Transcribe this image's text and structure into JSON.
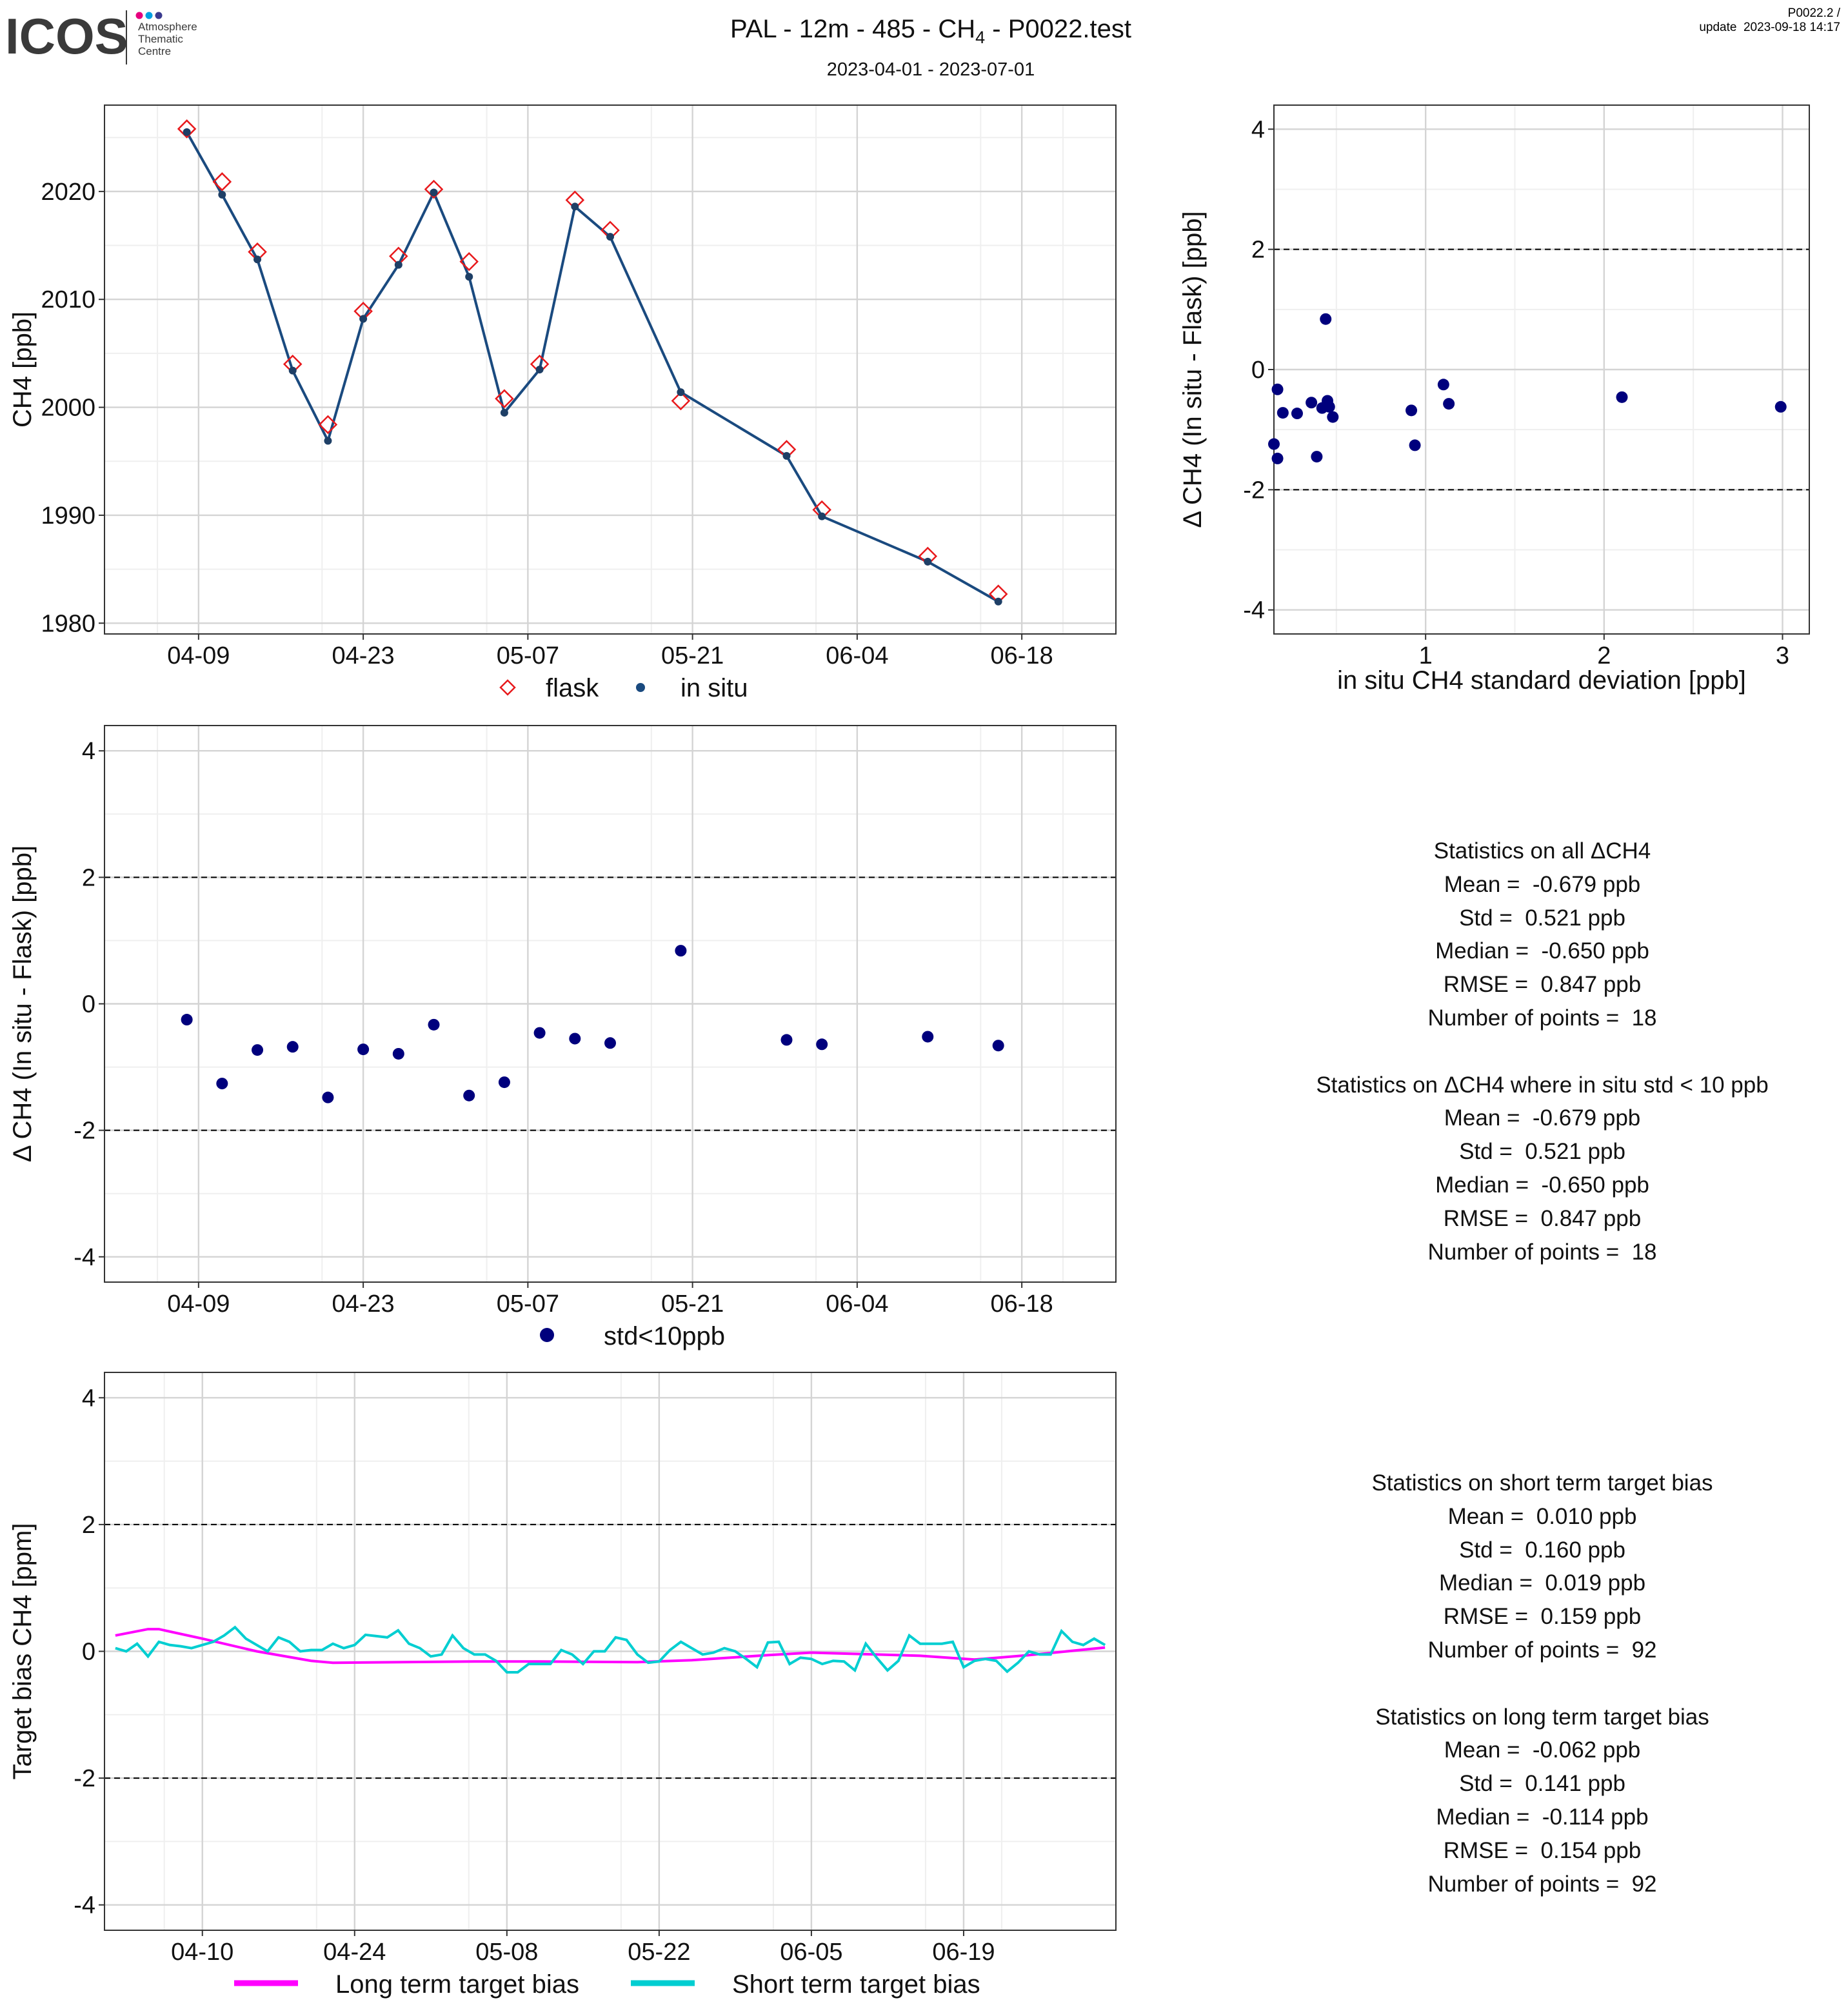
{
  "header": {
    "logo_text": "ICOS",
    "logo_sub": [
      "Atmosphere",
      "Thematic",
      "Centre"
    ],
    "title_main": "PAL - 12m - 485 - CH",
    "title_sub": "4",
    "title_end": " - P0022.test",
    "date_range": "2023-04-01 - 2023-07-01",
    "version": "P0022.2 /",
    "update": "update  2023-09-18 14:17"
  },
  "colors": {
    "series_line": "#1a4a7f",
    "in_situ_dot": "#1e3f66",
    "flask_marker": "#e8191c",
    "delta_dot": "#00007d",
    "long_term": "#ff00ff",
    "short_term": "#00ced1",
    "grid_major": "#d4d4d4",
    "grid_minor": "#efefef"
  },
  "stats_delta": [
    "Statistics on all ΔCH4",
    "Mean =  -0.679 ppb",
    "Std =  0.521 ppb",
    "Median =  -0.650 ppb",
    "RMSE =  0.847 ppb",
    "Number of points =  18",
    "",
    "Statistics on ΔCH4 where in situ std < 10 ppb",
    "Mean =  -0.679 ppb",
    "Std =  0.521 ppb",
    "Median =  -0.650 ppb",
    "RMSE =  0.847 ppb",
    "Number of points =  18"
  ],
  "stats_target": [
    "Statistics on short term target bias",
    "Mean =  0.010 ppb",
    "Std =  0.160 ppb",
    "Median =  0.019 ppb",
    "RMSE =  0.159 ppb",
    "Number of points =  92",
    "",
    "Statistics on long term target bias",
    "Mean =  -0.062 ppb",
    "Std =  0.141 ppb",
    "Median =  -0.114 ppb",
    "RMSE =  0.154 ppb",
    "Number of points =  92"
  ],
  "chart_data": [
    {
      "type": "line",
      "ylabel": "CH4 [ppb]",
      "xticks": [
        "04-09",
        "04-23",
        "05-07",
        "05-21",
        "06-04",
        "06-18"
      ],
      "xtick_values": [
        "2023-04-09",
        "2023-04-23",
        "2023-05-07",
        "2023-05-21",
        "2023-06-04",
        "2023-06-18"
      ],
      "xlim": [
        "2023-04-01",
        "2023-06-26"
      ],
      "yticks": [
        1980,
        1990,
        2000,
        2010,
        2020
      ],
      "ylim": [
        1979,
        2028
      ],
      "grid": true,
      "legend": "bottom",
      "legend_labels": [
        "flask",
        "in situ"
      ],
      "series": [
        {
          "name": "flask",
          "marker": "diamond",
          "x": [
            "2023-04-08",
            "2023-04-11",
            "2023-04-14",
            "2023-04-17",
            "2023-04-20",
            "2023-04-23",
            "2023-04-26",
            "2023-04-29",
            "2023-05-02",
            "2023-05-05",
            "2023-05-08",
            "2023-05-11",
            "2023-05-14",
            "2023-05-20",
            "2023-05-29",
            "2023-06-01",
            "2023-06-10",
            "2023-06-16"
          ],
          "y": [
            2025.8,
            2020.9,
            2014.4,
            2004.0,
            1998.4,
            2008.9,
            2014.0,
            2020.2,
            2013.5,
            2000.8,
            2004.0,
            2019.2,
            2016.4,
            2000.6,
            1996.1,
            1990.5,
            1986.2,
            1982.7
          ]
        },
        {
          "name": "in situ",
          "marker": "dot",
          "x": [
            "2023-04-08",
            "2023-04-11",
            "2023-04-14",
            "2023-04-17",
            "2023-04-20",
            "2023-04-23",
            "2023-04-26",
            "2023-04-29",
            "2023-05-02",
            "2023-05-05",
            "2023-05-08",
            "2023-05-11",
            "2023-05-14",
            "2023-05-20",
            "2023-05-29",
            "2023-06-01",
            "2023-06-10",
            "2023-06-16"
          ],
          "y": [
            2025.5,
            2019.7,
            2013.7,
            2003.4,
            1996.9,
            2008.2,
            2013.2,
            2019.9,
            2012.1,
            1999.5,
            2003.5,
            2018.6,
            2015.8,
            2001.4,
            1995.5,
            1989.9,
            1985.7,
            1982.0
          ]
        }
      ]
    },
    {
      "type": "scatter",
      "xlabel": "in situ CH4 standard deviation [ppb]",
      "ylabel": "Δ CH4 (In situ - Flask) [ppb]",
      "xticks": [
        1,
        2,
        3
      ],
      "xlim": [
        0.15,
        3.15
      ],
      "yticks": [
        -4,
        -2,
        0,
        2,
        4
      ],
      "ylim": [
        -4.4,
        4.4
      ],
      "hlines": [
        -2,
        2
      ],
      "grid": true,
      "x": [
        0.15,
        0.17,
        0.17,
        0.2,
        0.28,
        0.36,
        0.39,
        0.42,
        0.44,
        0.45,
        0.46,
        0.48,
        0.92,
        0.94,
        1.1,
        1.13,
        2.1,
        2.99
      ],
      "y": [
        -1.24,
        -1.48,
        -0.33,
        -0.72,
        -0.73,
        -0.55,
        -1.45,
        -0.64,
        0.84,
        -0.52,
        -0.62,
        -0.79,
        -0.68,
        -1.26,
        -0.25,
        -0.57,
        -0.46,
        -0.62
      ]
    },
    {
      "type": "scatter",
      "ylabel": "Δ CH4 (In situ - Flask) [ppb]",
      "xticks": [
        "04-09",
        "04-23",
        "05-07",
        "05-21",
        "06-04",
        "06-18"
      ],
      "xtick_values": [
        "2023-04-09",
        "2023-04-23",
        "2023-05-07",
        "2023-05-21",
        "2023-06-04",
        "2023-06-18"
      ],
      "xlim": [
        "2023-04-01",
        "2023-06-26"
      ],
      "yticks": [
        -4,
        -2,
        0,
        2,
        4
      ],
      "ylim": [
        -4.4,
        4.4
      ],
      "hlines": [
        -2,
        2
      ],
      "grid": true,
      "legend": "bottom",
      "legend_labels": [
        "std<10ppb"
      ],
      "series": [
        {
          "name": "std<10ppb",
          "x": [
            "2023-04-08",
            "2023-04-11",
            "2023-04-14",
            "2023-04-17",
            "2023-04-20",
            "2023-04-23",
            "2023-04-26",
            "2023-04-29",
            "2023-05-02",
            "2023-05-05",
            "2023-05-08",
            "2023-05-11",
            "2023-05-14",
            "2023-05-20",
            "2023-05-29",
            "2023-06-01",
            "2023-06-10",
            "2023-06-16"
          ],
          "y": [
            -0.25,
            -1.26,
            -0.73,
            -0.68,
            -1.48,
            -0.72,
            -0.79,
            -0.33,
            -1.45,
            -1.24,
            -0.46,
            -0.55,
            -0.62,
            0.84,
            -0.57,
            -0.64,
            -0.52,
            -0.66
          ]
        }
      ]
    },
    {
      "type": "line",
      "ylabel": "Target bias CH4 [ppm]",
      "xticks": [
        "04-10",
        "04-24",
        "05-08",
        "05-22",
        "06-05",
        "06-19"
      ],
      "xtick_values": [
        "2023-04-10",
        "2023-04-24",
        "2023-05-08",
        "2023-05-22",
        "2023-06-05",
        "2023-06-19"
      ],
      "xlim": [
        "2023-04-01",
        "2023-07-03"
      ],
      "yticks": [
        -4,
        -2,
        0,
        2,
        4
      ],
      "ylim": [
        -4.4,
        4.4
      ],
      "hlines": [
        -2,
        2
      ],
      "grid": true,
      "legend": "bottom",
      "legend_labels": [
        "Long term target bias",
        "Short term target bias"
      ],
      "series": [
        {
          "name": "Long term target bias",
          "x": [
            "2023-04-02",
            "2023-04-05",
            "2023-04-06",
            "2023-04-10",
            "2023-04-15",
            "2023-04-20",
            "2023-04-22",
            "2023-05-05",
            "2023-05-11",
            "2023-05-20",
            "2023-05-25",
            "2023-06-01",
            "2023-06-05",
            "2023-06-15",
            "2023-06-20",
            "2023-06-25",
            "2023-07-02"
          ],
          "y": [
            0.25,
            0.35,
            0.35,
            0.2,
            0.0,
            -0.15,
            -0.18,
            -0.16,
            -0.16,
            -0.17,
            -0.14,
            -0.06,
            -0.02,
            -0.07,
            -0.13,
            -0.06,
            0.06
          ]
        },
        {
          "name": "Short term target bias",
          "x": [
            "2023-04-02",
            "2023-04-03",
            "2023-04-04",
            "2023-04-05",
            "2023-04-06",
            "2023-04-07",
            "2023-04-08",
            "2023-04-09",
            "2023-04-10",
            "2023-04-11",
            "2023-04-12",
            "2023-04-13",
            "2023-04-14",
            "2023-04-15",
            "2023-04-16",
            "2023-04-17",
            "2023-04-18",
            "2023-04-19",
            "2023-04-20",
            "2023-04-21",
            "2023-04-22",
            "2023-04-23",
            "2023-04-24",
            "2023-04-25",
            "2023-04-26",
            "2023-04-27",
            "2023-04-28",
            "2023-04-29",
            "2023-04-30",
            "2023-05-01",
            "2023-05-02",
            "2023-05-03",
            "2023-05-04",
            "2023-05-05",
            "2023-05-06",
            "2023-05-07",
            "2023-05-08",
            "2023-05-09",
            "2023-05-10",
            "2023-05-11",
            "2023-05-12",
            "2023-05-13",
            "2023-05-14",
            "2023-05-15",
            "2023-05-16",
            "2023-05-17",
            "2023-05-18",
            "2023-05-19",
            "2023-05-20",
            "2023-05-21",
            "2023-05-22",
            "2023-05-23",
            "2023-05-24",
            "2023-05-25",
            "2023-05-26",
            "2023-05-27",
            "2023-05-28",
            "2023-05-29",
            "2023-05-30",
            "2023-05-31",
            "2023-06-01",
            "2023-06-02",
            "2023-06-03",
            "2023-06-04",
            "2023-06-05",
            "2023-06-06",
            "2023-06-07",
            "2023-06-08",
            "2023-06-09",
            "2023-06-10",
            "2023-06-11",
            "2023-06-12",
            "2023-06-13",
            "2023-06-14",
            "2023-06-15",
            "2023-06-16",
            "2023-06-17",
            "2023-06-18",
            "2023-06-19",
            "2023-06-20",
            "2023-06-21",
            "2023-06-22",
            "2023-06-23",
            "2023-06-24",
            "2023-06-25",
            "2023-06-26",
            "2023-06-27",
            "2023-06-28",
            "2023-06-29",
            "2023-06-30",
            "2023-07-01",
            "2023-07-02"
          ],
          "y": [
            0.05,
            0.0,
            0.12,
            -0.08,
            0.15,
            0.1,
            0.08,
            0.05,
            0.1,
            0.15,
            0.25,
            0.38,
            0.2,
            0.1,
            0.0,
            0.22,
            0.15,
            0.0,
            0.02,
            0.02,
            0.12,
            0.05,
            0.1,
            0.26,
            0.24,
            0.22,
            0.33,
            0.12,
            0.05,
            -0.08,
            -0.05,
            0.25,
            0.05,
            -0.05,
            -0.05,
            -0.15,
            -0.33,
            -0.33,
            -0.2,
            -0.2,
            -0.2,
            0.02,
            -0.05,
            -0.2,
            0.0,
            0.0,
            0.22,
            0.18,
            -0.05,
            -0.18,
            -0.16,
            0.02,
            0.15,
            0.05,
            -0.05,
            -0.02,
            0.05,
            0.0,
            -0.12,
            -0.25,
            0.14,
            0.15,
            -0.2,
            -0.1,
            -0.12,
            -0.2,
            -0.15,
            -0.16,
            -0.3,
            0.12,
            -0.1,
            -0.3,
            -0.15,
            0.25,
            0.12,
            0.12,
            0.12,
            0.15,
            -0.25,
            -0.15,
            -0.12,
            -0.15,
            -0.32,
            -0.18,
            0.0,
            -0.05,
            -0.05,
            0.32,
            0.15,
            0.1,
            0.2,
            0.1
          ]
        }
      ]
    }
  ]
}
